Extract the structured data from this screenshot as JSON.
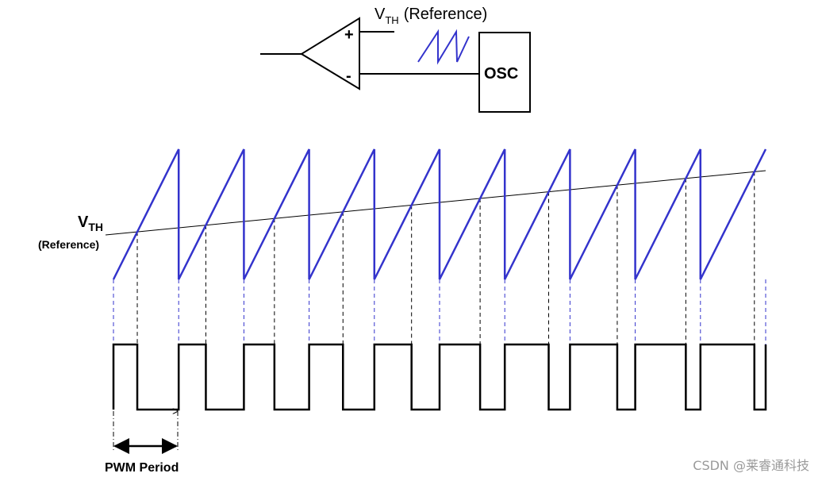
{
  "schematic": {
    "ref_main": "V",
    "ref_sub": "TH",
    "ref_suffix": "(Reference)",
    "plus_sign": "+",
    "minus_sign": "-",
    "osc_label": "OSC"
  },
  "waveform": {
    "vth_main": "V",
    "vth_sub": "TH",
    "vth_suffix": "(Reference)",
    "pwm_period_label": "PWM Period",
    "ramp_count": 10,
    "colors": {
      "ramp": "#3333cc",
      "signal": "#000000"
    }
  },
  "watermark": {
    "text": "CSDN @莱睿通科技"
  }
}
